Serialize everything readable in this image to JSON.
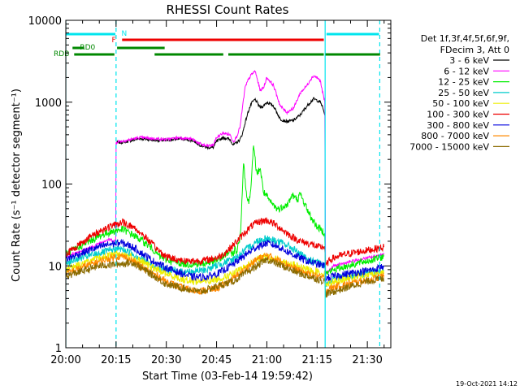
{
  "chart_data": {
    "type": "line",
    "title": "RHESSI Count Rates",
    "xlabel": "Start Time (03-Feb-14 19:59:42)",
    "ylabel": "Count Rate (s⁻¹ detector segment⁻¹)",
    "yscale": "log",
    "xlim": [
      0,
      97
    ],
    "ylim": [
      1,
      10000
    ],
    "x_ticks": [
      {
        "t": 0,
        "label": "20:00"
      },
      {
        "t": 15,
        "label": "20:15"
      },
      {
        "t": 30,
        "label": "20:30"
      },
      {
        "t": 45,
        "label": "20:45"
      },
      {
        "t": 60,
        "label": "21:00"
      },
      {
        "t": 75,
        "label": "21:15"
      },
      {
        "t": 90,
        "label": "21:30"
      }
    ],
    "y_ticks": [
      {
        "v": 1,
        "label": "1"
      },
      {
        "v": 10,
        "label": "10"
      },
      {
        "v": 100,
        "label": "100"
      },
      {
        "v": 1000,
        "label": "1000"
      },
      {
        "v": 10000,
        "label": "10000"
      }
    ],
    "legend": {
      "header": [
        "Det 1f,3f,4f,5f,6f,9f,",
        "FDecim 3, Att 0"
      ],
      "placement": "right"
    },
    "series": [
      {
        "name": "3 - 6 keV",
        "color": "#000000",
        "x": [
          15,
          15.5,
          18,
          22,
          26,
          30,
          34,
          38,
          40,
          42,
          44,
          45,
          47,
          49,
          50,
          51,
          52,
          52.8,
          53.5,
          54.5,
          55.5,
          56.5,
          58,
          59,
          60,
          62,
          64,
          66,
          68,
          70,
          72,
          73,
          74,
          75,
          76,
          76.5,
          77.3
        ],
        "y": [
          320,
          320,
          330,
          360,
          345,
          340,
          360,
          340,
          300,
          280,
          280,
          330,
          370,
          350,
          300,
          320,
          350,
          420,
          560,
          780,
          980,
          1080,
          860,
          900,
          1000,
          900,
          620,
          580,
          600,
          700,
          900,
          1000,
          1100,
          1050,
          1000,
          900,
          700
        ]
      },
      {
        "name": "6 - 12 keV",
        "color": "#ff00ff",
        "x": [
          0,
          2,
          5,
          8,
          11,
          13,
          14.9,
          15,
          15.5,
          18,
          22,
          26,
          30,
          34,
          38,
          40,
          42,
          44,
          45,
          47,
          49,
          50,
          51,
          52,
          52.8,
          53.5,
          54.5,
          55.5,
          56.5,
          58,
          59,
          60,
          62,
          64,
          66,
          68,
          70,
          72,
          73,
          74,
          75,
          76,
          76.5,
          77.3,
          77.5,
          80,
          84,
          88,
          92,
          95
        ],
        "y": [
          13,
          14,
          15.5,
          17,
          20,
          21,
          20,
          320,
          330,
          340,
          370,
          360,
          350,
          370,
          350,
          310,
          290,
          300,
          370,
          420,
          400,
          330,
          380,
          500,
          900,
          1500,
          1900,
          2200,
          2400,
          1400,
          1500,
          2000,
          1600,
          900,
          750,
          850,
          1300,
          1600,
          1900,
          2100,
          2000,
          1800,
          1400,
          1000,
          8,
          10,
          11,
          12,
          13,
          14
        ]
      },
      {
        "name": "12 - 25 keV",
        "color": "#00ee00",
        "x": [
          0,
          3,
          6,
          9,
          12,
          15,
          17,
          20,
          23,
          26,
          28,
          30,
          33,
          36,
          40,
          43,
          46,
          47,
          48,
          49,
          50,
          50.5,
          51,
          51.5,
          52,
          52.5,
          53,
          53.5,
          54,
          54.5,
          55,
          56,
          56.5,
          57,
          58,
          58.5,
          59,
          60,
          61,
          62,
          63,
          64,
          65,
          66,
          67,
          67.5,
          68,
          69,
          70,
          71,
          72,
          73,
          74,
          75,
          76,
          77,
          77.3,
          77.5,
          80,
          84,
          88,
          92,
          95
        ],
        "y": [
          14,
          16,
          19,
          22,
          25,
          27,
          28,
          24,
          20,
          16,
          13,
          12,
          11,
          10.5,
          10.5,
          11,
          12,
          13,
          14,
          15,
          14,
          16,
          15,
          18,
          22,
          50,
          190,
          120,
          70,
          60,
          70,
          280,
          200,
          130,
          160,
          110,
          80,
          70,
          60,
          55,
          50,
          50,
          55,
          55,
          65,
          75,
          70,
          65,
          75,
          60,
          50,
          40,
          35,
          30,
          28,
          26,
          25,
          8,
          9,
          10,
          11,
          12,
          13
        ]
      },
      {
        "name": "25 - 50 keV",
        "color": "#00cccc",
        "x": [
          0,
          3,
          6,
          9,
          12,
          15,
          17,
          20,
          23,
          26,
          30,
          34,
          38,
          42,
          46,
          50,
          54,
          57,
          60,
          63,
          66,
          69,
          72,
          75,
          77.3,
          77.5,
          80,
          84,
          88,
          92,
          95
        ],
        "y": [
          11,
          12,
          13,
          14,
          15,
          16,
          16,
          14,
          12,
          10,
          9,
          8.5,
          8.5,
          9,
          10.5,
          12,
          16,
          20,
          22,
          20,
          18,
          15,
          12,
          11,
          10,
          6,
          7,
          7.5,
          8,
          8.5,
          9
        ]
      },
      {
        "name": "50 - 100 keV",
        "color": "#eeee00",
        "x": [
          0,
          3,
          6,
          9,
          12,
          15,
          17,
          20,
          23,
          26,
          30,
          34,
          38,
          42,
          46,
          50,
          54,
          57,
          60,
          63,
          66,
          69,
          72,
          75,
          77.3,
          77.5,
          80,
          84,
          88,
          92,
          95
        ],
        "y": [
          9,
          10,
          11,
          12,
          13,
          14,
          14,
          12.5,
          11,
          9.5,
          8,
          7,
          6.5,
          6.5,
          7,
          8,
          10,
          12,
          13,
          12,
          11,
          10,
          9,
          8.5,
          8,
          6,
          6.5,
          7,
          7.5,
          8,
          8.5
        ]
      },
      {
        "name": "100 - 300 keV",
        "color": "#ee0000",
        "x": [
          0,
          3,
          6,
          9,
          12,
          15,
          17,
          20,
          23,
          26,
          28,
          30,
          33,
          36,
          40,
          43,
          46,
          48,
          50,
          52,
          54,
          56,
          58,
          60,
          62,
          64,
          66,
          68,
          70,
          72,
          74,
          75,
          76,
          77.3,
          77.5,
          79,
          81,
          84,
          86,
          88,
          90,
          92,
          95
        ],
        "y": [
          14,
          17,
          21,
          25,
          29,
          32,
          34,
          30,
          24,
          18,
          15,
          13,
          12,
          11.5,
          11.5,
          12,
          13,
          15,
          18,
          22,
          27,
          32,
          35,
          36,
          33,
          29,
          25,
          22,
          20,
          19,
          18,
          17,
          17,
          17,
          10,
          12,
          13,
          14,
          14.5,
          15,
          15.5,
          16,
          17
        ]
      },
      {
        "name": "300 - 800 keV",
        "color": "#0000dd",
        "x": [
          0,
          3,
          6,
          9,
          12,
          15,
          17,
          20,
          23,
          26,
          30,
          34,
          38,
          42,
          46,
          50,
          54,
          57,
          60,
          63,
          66,
          69,
          72,
          75,
          77.3,
          77.5,
          80,
          84,
          88,
          92,
          95
        ],
        "y": [
          12,
          13.5,
          15,
          16.5,
          18,
          19,
          19,
          17,
          14,
          11.5,
          9.5,
          8.2,
          7.3,
          7.3,
          8.3,
          10.5,
          14,
          17,
          19,
          17.5,
          15,
          13,
          11.5,
          10.5,
          10,
          7,
          7.5,
          8,
          8.5,
          9,
          10
        ]
      },
      {
        "name": "800 - 7000 keV",
        "color": "#ff8800",
        "x": [
          0,
          3,
          6,
          9,
          12,
          15,
          17,
          20,
          23,
          26,
          30,
          34,
          38,
          42,
          46,
          50,
          54,
          57,
          60,
          63,
          66,
          69,
          72,
          75,
          77.3,
          77.5,
          80,
          84,
          88,
          92,
          95
        ],
        "y": [
          8,
          9,
          10,
          11,
          12,
          13,
          13,
          11.5,
          9.5,
          8,
          6.5,
          5.5,
          5,
          5,
          5.5,
          7,
          9.5,
          12,
          13.5,
          12,
          10.5,
          9,
          8,
          7.5,
          7,
          5,
          5.5,
          6,
          6.5,
          7,
          7.5
        ]
      },
      {
        "name": "7000 - 15000 keV",
        "color": "#8b6b00",
        "x": [
          0,
          10,
          20,
          30,
          40,
          50,
          60,
          70,
          77.3,
          77.5,
          90,
          95
        ],
        "y": [
          7.5,
          10,
          11,
          6,
          4.8,
          6.5,
          12,
          8,
          6.5,
          4.5,
          6.5,
          7
        ]
      }
    ],
    "state_bars": [
      {
        "label": "N",
        "color": "#00e5ee",
        "segments": [
          [
            0,
            14.8
          ],
          [
            77.8,
            93.5
          ]
        ]
      },
      {
        "label": "F",
        "color": "#ee0000",
        "segments": [
          [
            16.8,
            77.0
          ]
        ]
      },
      {
        "label": "RD0",
        "color": "#008800",
        "segments": [
          [
            2,
            5.5
          ],
          [
            15.3,
            29.5
          ]
        ]
      },
      {
        "label": "RDB",
        "color": "#008800",
        "segments": [
          [
            2.5,
            14.5
          ],
          [
            26.5,
            47.0
          ],
          [
            48.5,
            77.0
          ],
          [
            77.5,
            93.8
          ]
        ]
      }
    ],
    "vlines": [
      {
        "t": 0,
        "style": "solid",
        "color": "#00e5ee"
      },
      {
        "t": 15,
        "style": "dashed",
        "color": "#00e5ee"
      },
      {
        "t": 77.4,
        "style": "solid",
        "color": "#00e5ee"
      },
      {
        "t": 93.7,
        "style": "dashed",
        "color": "#00e5ee"
      }
    ],
    "footer_date": "19-Oct-2021 14:12"
  }
}
